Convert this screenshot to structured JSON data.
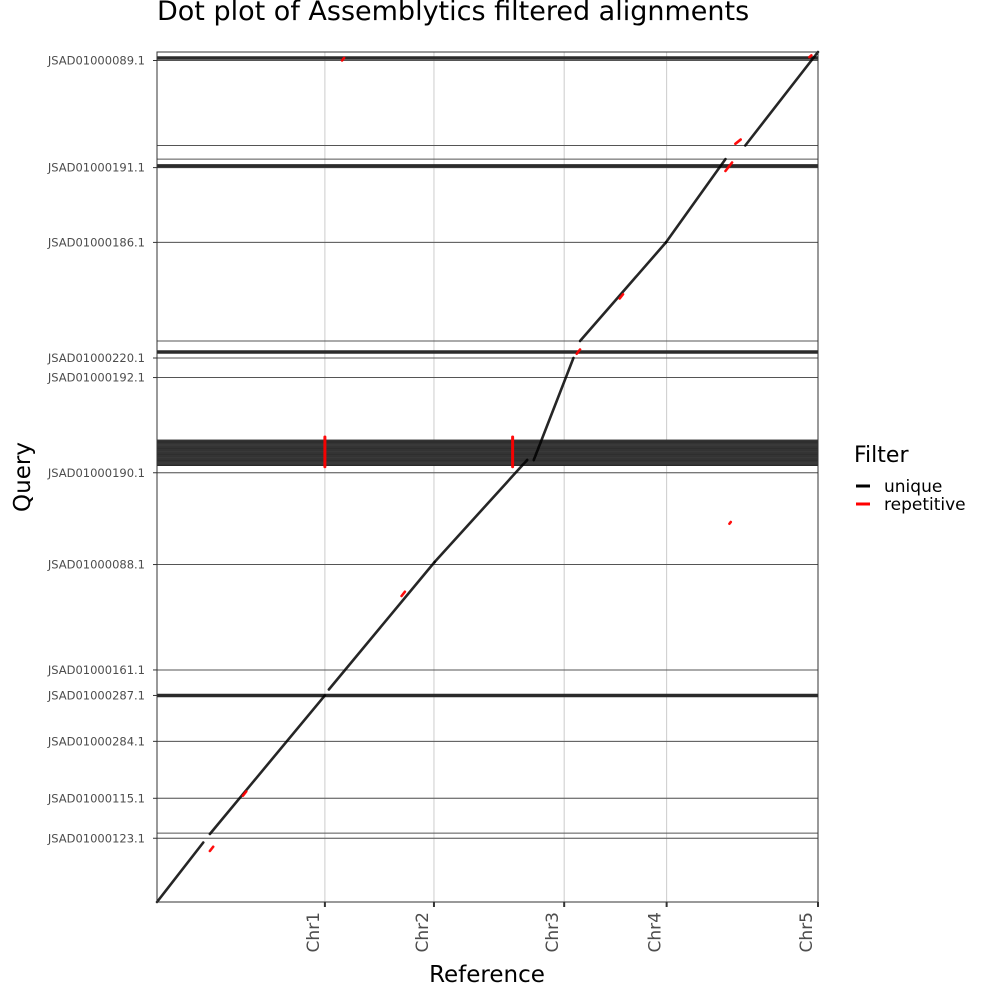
{
  "chart_data": {
    "type": "scatter",
    "title": "Dot plot of Assemblytics filtered alignments",
    "xlabel": "Reference",
    "ylabel": "Query",
    "x_ticks": [
      "Chr1",
      "Chr2",
      "Chr3",
      "Chr4",
      "Chr5"
    ],
    "x_tick_fraction": [
      0.254,
      0.419,
      0.616,
      0.771,
      1.0
    ],
    "y_ticks": [
      {
        "label": "JSAD01000089.1",
        "fraction": 0.99
      },
      {
        "label": "JSAD01000191.1",
        "fraction": 0.864
      },
      {
        "label": "JSAD01000186.1",
        "fraction": 0.776
      },
      {
        "label": "JSAD01000220.1",
        "fraction": 0.64
      },
      {
        "label": "JSAD01000192.1",
        "fraction": 0.617
      },
      {
        "label": "JSAD01000190.1",
        "fraction": 0.505
      },
      {
        "label": "JSAD01000088.1",
        "fraction": 0.397
      },
      {
        "label": "JSAD01000161.1",
        "fraction": 0.273
      },
      {
        "label": "JSAD01000287.1",
        "fraction": 0.243
      },
      {
        "label": "JSAD01000284.1",
        "fraction": 0.189
      },
      {
        "label": "JSAD01000115.1",
        "fraction": 0.122
      },
      {
        "label": "JSAD01000123.1",
        "fraction": 0.075
      }
    ],
    "contig_boundaries": [
      0.0,
      0.075,
      0.081,
      0.122,
      0.189,
      0.243,
      0.273,
      0.397,
      0.505,
      0.617,
      0.64,
      0.647,
      0.66,
      0.776,
      0.864,
      0.874,
      0.89,
      0.99,
      1.0
    ],
    "dense_band": [
      0.513,
      0.544
    ],
    "thick_lines": [
      0.243,
      0.647,
      0.866,
      0.993
    ],
    "series": [
      {
        "name": "unique",
        "color": "#000000",
        "segments": [
          [
            [
              0.0,
              0.0
            ],
            [
              0.07,
              0.07
            ]
          ],
          [
            [
              0.08,
              0.08
            ],
            [
              0.254,
              0.243
            ]
          ],
          [
            [
              0.26,
              0.25
            ],
            [
              0.42,
              0.4
            ]
          ],
          [
            [
              0.42,
              0.4
            ],
            [
              0.56,
              0.52
            ]
          ],
          [
            [
              0.57,
              0.52
            ],
            [
              0.63,
              0.64
            ]
          ],
          [
            [
              0.64,
              0.66
            ],
            [
              0.77,
              0.776
            ]
          ],
          [
            [
              0.77,
              0.776
            ],
            [
              0.86,
              0.874
            ]
          ],
          [
            [
              0.89,
              0.89
            ],
            [
              1.0,
              1.0
            ]
          ]
        ]
      },
      {
        "name": "repetitive",
        "color": "#ff0000",
        "segments": [
          [
            [
              0.254,
              0.512
            ],
            [
              0.254,
              0.547
            ]
          ],
          [
            [
              0.538,
              0.512
            ],
            [
              0.538,
              0.547
            ]
          ],
          [
            [
              0.08,
              0.06
            ],
            [
              0.085,
              0.065
            ]
          ],
          [
            [
              0.13,
              0.125
            ],
            [
              0.135,
              0.13
            ]
          ],
          [
            [
              0.37,
              0.36
            ],
            [
              0.375,
              0.365
            ]
          ],
          [
            [
              0.635,
              0.645
            ],
            [
              0.64,
              0.65
            ]
          ],
          [
            [
              0.7,
              0.71
            ],
            [
              0.705,
              0.715
            ]
          ],
          [
            [
              0.86,
              0.86
            ],
            [
              0.87,
              0.87
            ]
          ],
          [
            [
              0.875,
              0.892
            ],
            [
              0.883,
              0.897
            ]
          ],
          [
            [
              0.987,
              0.994
            ],
            [
              0.99,
              0.996
            ]
          ],
          [
            [
              0.28,
              0.99
            ],
            [
              0.283,
              0.993
            ]
          ],
          [
            [
              0.866,
              0.445
            ],
            [
              0.868,
              0.447
            ]
          ]
        ]
      }
    ],
    "grid": true,
    "legend": {
      "title": "Filter",
      "position": "right",
      "entries": [
        {
          "label": "unique",
          "color": "#000000"
        },
        {
          "label": "repetitive",
          "color": "#ff0000"
        }
      ]
    }
  }
}
